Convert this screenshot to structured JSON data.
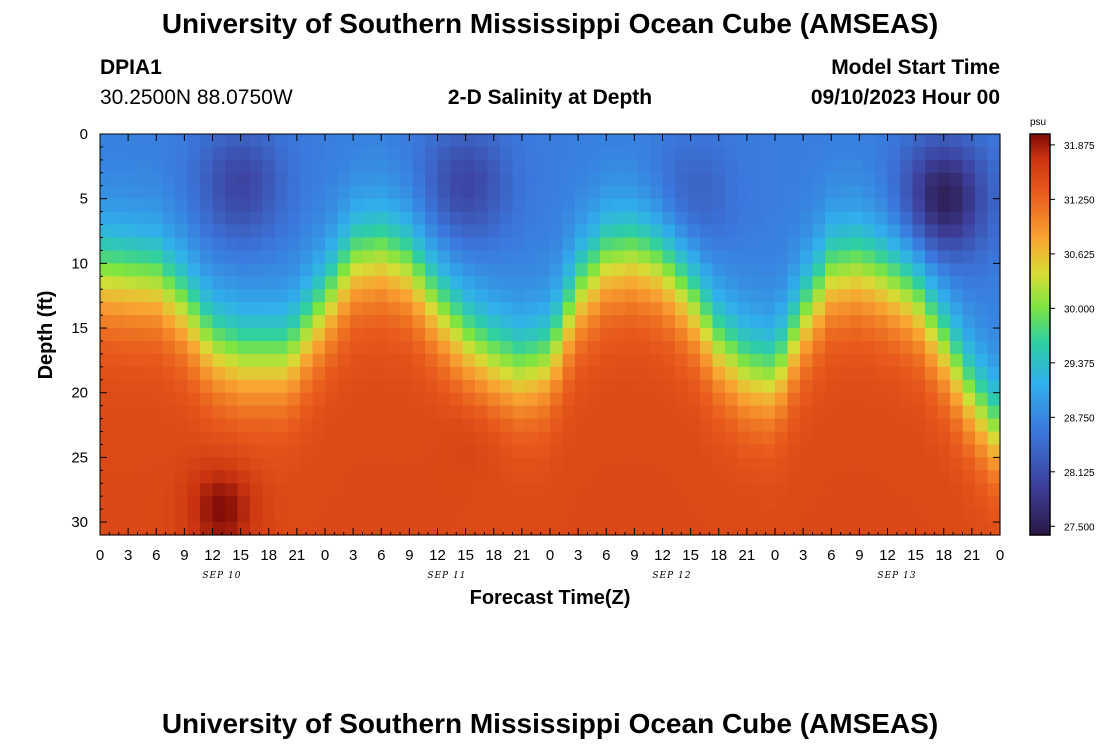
{
  "header": {
    "title": "University of Southern Mississippi Ocean Cube (AMSEAS)",
    "station_id": "DPIA1",
    "coords": "30.2500N  88.0750W",
    "subtitle": "2-D Salinity at Depth",
    "model_start_label": "Model Start Time",
    "model_start_value": "09/10/2023 Hour 00"
  },
  "footer": {
    "title": "University of Southern Mississippi Ocean Cube (AMSEAS)"
  },
  "chart_data": {
    "type": "heatmap",
    "title": "2-D Salinity at Depth",
    "xlabel": "Forecast Time(Z)",
    "ylabel": "Depth (ft)",
    "x_range_hours": [
      0,
      96
    ],
    "y_range_ft": [
      0,
      31
    ],
    "x_tick_labels": [
      "0",
      "3",
      "6",
      "9",
      "12",
      "15",
      "18",
      "21",
      "0",
      "3",
      "6",
      "9",
      "12",
      "15",
      "18",
      "21",
      "0",
      "3",
      "6",
      "9",
      "12",
      "15",
      "18",
      "21",
      "0",
      "3",
      "6",
      "9",
      "12",
      "15",
      "18",
      "21",
      "0"
    ],
    "y_ticks": [
      0,
      5,
      10,
      15,
      20,
      25,
      30
    ],
    "date_labels": [
      "SEP 10",
      "SEP 11",
      "SEP 12",
      "SEP 13"
    ],
    "colorbar": {
      "unit": "psu",
      "min": 27.4,
      "max": 32.0,
      "ticks": [
        "31.875",
        "31.250",
        "30.625",
        "30.000",
        "29.375",
        "28.750",
        "28.125",
        "27.500"
      ]
    },
    "halocline_depth_ft": [
      [
        0,
        10.5
      ],
      [
        6,
        11
      ],
      [
        9,
        13
      ],
      [
        12,
        16
      ],
      [
        15,
        17
      ],
      [
        20,
        17
      ],
      [
        24,
        13
      ],
      [
        27,
        9.5
      ],
      [
        30,
        9
      ],
      [
        33,
        10
      ],
      [
        36,
        13
      ],
      [
        39,
        15.5
      ],
      [
        42,
        17
      ],
      [
        45,
        18
      ],
      [
        48,
        17
      ],
      [
        51,
        12
      ],
      [
        54,
        9.5
      ],
      [
        57,
        9
      ],
      [
        60,
        10
      ],
      [
        63,
        12.5
      ],
      [
        66,
        16
      ],
      [
        69,
        18
      ],
      [
        72,
        18.5
      ],
      [
        75,
        14
      ],
      [
        78,
        10.5
      ],
      [
        81,
        10
      ],
      [
        84,
        11
      ],
      [
        87,
        12.5
      ],
      [
        90,
        16
      ],
      [
        93,
        20
      ],
      [
        96,
        23
      ]
    ],
    "low_salinity_cores": [
      {
        "hour": 15,
        "depth_ft": 4,
        "psu": 28.0
      },
      {
        "hour": 39,
        "depth_ft": 4,
        "psu": 28.0
      },
      {
        "hour": 63,
        "depth_ft": 5,
        "psu": 28.3
      },
      {
        "hour": 90,
        "depth_ft": 5,
        "psu": 27.5
      }
    ],
    "high_salinity_cores": [
      {
        "hour": 13,
        "depth_ft": 29,
        "psu": 32.0
      },
      {
        "hour": 40,
        "depth_ft": 23,
        "psu": 31.6
      }
    ]
  }
}
